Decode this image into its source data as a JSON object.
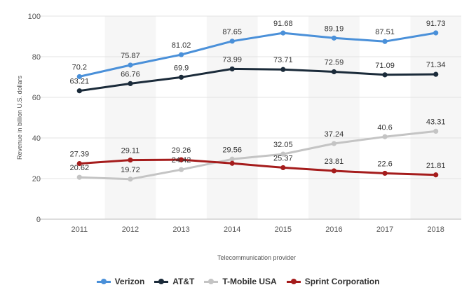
{
  "chart_data": {
    "type": "line",
    "categories": [
      "2011",
      "2012",
      "2013",
      "2014",
      "2015",
      "2016",
      "2017",
      "2018"
    ],
    "series": [
      {
        "name": "Verizon",
        "color": "#4a90d9",
        "values": [
          70.2,
          75.87,
          81.02,
          87.65,
          91.68,
          89.19,
          87.51,
          91.73
        ],
        "labels": [
          "70.2",
          "75.87",
          "81.02",
          "87.65",
          "91.68",
          "89.19",
          "87.51",
          "91.73"
        ]
      },
      {
        "name": "AT&T",
        "color": "#1b2b3a",
        "values": [
          63.21,
          66.76,
          69.9,
          73.99,
          73.71,
          72.59,
          71.09,
          71.34
        ],
        "labels": [
          "63.21",
          "66.76",
          "69.9",
          "73.99",
          "73.71",
          "72.59",
          "71.09",
          "71.34"
        ]
      },
      {
        "name": "T-Mobile USA",
        "color": "#c4c4c4",
        "values": [
          20.62,
          19.72,
          24.42,
          29.56,
          32.05,
          37.24,
          40.6,
          43.31
        ],
        "labels": [
          "20.62",
          "19.72",
          "24.42",
          "29.56",
          "32.05",
          "37.24",
          "40.6",
          "43.31"
        ]
      },
      {
        "name": "Sprint Corporation",
        "color": "#a51c1c",
        "values": [
          27.39,
          29.11,
          29.26,
          27.5,
          25.37,
          23.81,
          22.6,
          21.81
        ],
        "labels": [
          "27.39",
          "29.11",
          "29.26",
          "",
          "25.37",
          "23.81",
          "22.6",
          "21.81"
        ]
      }
    ],
    "y_ticks": [
      "0",
      "20",
      "40",
      "60",
      "80",
      "100"
    ],
    "ylim": [
      0,
      100
    ],
    "xlabel": "Telecommunication provider",
    "ylabel": "Revenue in billion U.S. dollars",
    "legend_position": "bottom",
    "grid": true
  }
}
